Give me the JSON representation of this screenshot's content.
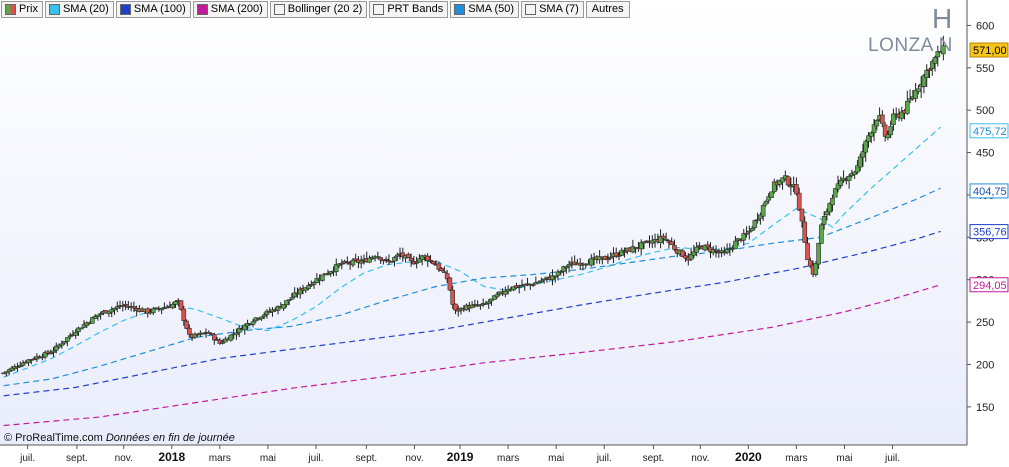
{
  "legend": [
    {
      "label": "Prix",
      "color": "#5aa64a",
      "swatch": "candle"
    },
    {
      "label": "SMA (20)",
      "color": "#39c0ef"
    },
    {
      "label": "SMA (100)",
      "color": "#1f3fc9"
    },
    {
      "label": "SMA (200)",
      "color": "#c21a9a"
    },
    {
      "label": "Bollinger (20 2)",
      "color": "#f4f4f4"
    },
    {
      "label": "PRT Bands",
      "color": "#f4f4f4"
    },
    {
      "label": "SMA (50)",
      "color": "#1e8fdc"
    },
    {
      "label": "SMA (7)",
      "color": "#f4f4f4"
    }
  ],
  "legend_more": "Autres",
  "ticker": {
    "letter": "H",
    "name": "LONZA N"
  },
  "footer": {
    "source": "© ProRealTime.com",
    "note": "Données en fin de journée"
  },
  "chart_data": {
    "type": "candlestick",
    "title": "LONZA N",
    "ylim": [
      105,
      630
    ],
    "yticks": [
      150,
      200,
      250,
      300,
      350,
      400,
      450,
      500,
      550,
      600
    ],
    "x_labels": [
      {
        "t": 2.0,
        "label": "juil.",
        "bold": false
      },
      {
        "t": 6.1,
        "label": "sept.",
        "bold": false
      },
      {
        "t": 10.0,
        "label": "nov.",
        "bold": false
      },
      {
        "t": 14.0,
        "label": "2018",
        "bold": true
      },
      {
        "t": 18.0,
        "label": "mars",
        "bold": false
      },
      {
        "t": 22.0,
        "label": "mai",
        "bold": false
      },
      {
        "t": 26.0,
        "label": "juil.",
        "bold": false
      },
      {
        "t": 30.2,
        "label": "sept.",
        "bold": false
      },
      {
        "t": 34.2,
        "label": "nov.",
        "bold": false
      },
      {
        "t": 38.0,
        "label": "2019",
        "bold": true
      },
      {
        "t": 42.0,
        "label": "mars",
        "bold": false
      },
      {
        "t": 46.0,
        "label": "mai",
        "bold": false
      },
      {
        "t": 50.0,
        "label": "juil.",
        "bold": false
      },
      {
        "t": 54.1,
        "label": "sept.",
        "bold": false
      },
      {
        "t": 58.0,
        "label": "nov.",
        "bold": false
      },
      {
        "t": 62.0,
        "label": "2020",
        "bold": true
      },
      {
        "t": 66.0,
        "label": "mars",
        "bold": false
      },
      {
        "t": 70.0,
        "label": "mai",
        "bold": false
      },
      {
        "t": 74.0,
        "label": "juil.",
        "bold": false
      }
    ],
    "price_points": [
      [
        0,
        190
      ],
      [
        2,
        205
      ],
      [
        4,
        215
      ],
      [
        6,
        240
      ],
      [
        8,
        260
      ],
      [
        10,
        270
      ],
      [
        12,
        262
      ],
      [
        14,
        270
      ],
      [
        14.5,
        275
      ],
      [
        15.5,
        232
      ],
      [
        17,
        238
      ],
      [
        18,
        225
      ],
      [
        19,
        235
      ],
      [
        21,
        255
      ],
      [
        23,
        268
      ],
      [
        24.5,
        285
      ],
      [
        26,
        300
      ],
      [
        28,
        318
      ],
      [
        30,
        322
      ],
      [
        31,
        330
      ],
      [
        32,
        320
      ],
      [
        33,
        330
      ],
      [
        34,
        320
      ],
      [
        35,
        328
      ],
      [
        36,
        318
      ],
      [
        37,
        300
      ],
      [
        37.5,
        262
      ],
      [
        38.5,
        268
      ],
      [
        40,
        270
      ],
      [
        42,
        290
      ],
      [
        44,
        295
      ],
      [
        46,
        305
      ],
      [
        47,
        318
      ],
      [
        48,
        320
      ],
      [
        50,
        325
      ],
      [
        52,
        335
      ],
      [
        54,
        345
      ],
      [
        55,
        350
      ],
      [
        56,
        335
      ],
      [
        57,
        325
      ],
      [
        58,
        340
      ],
      [
        60,
        330
      ],
      [
        61,
        345
      ],
      [
        62,
        355
      ],
      [
        63,
        380
      ],
      [
        64,
        410
      ],
      [
        65,
        420
      ],
      [
        66,
        405
      ],
      [
        67,
        320
      ],
      [
        67.5,
        305
      ],
      [
        68,
        360
      ],
      [
        69,
        400
      ],
      [
        70,
        420
      ],
      [
        71,
        430
      ],
      [
        72,
        470
      ],
      [
        72.8,
        495
      ],
      [
        73.5,
        465
      ],
      [
        74,
        490
      ],
      [
        75,
        500
      ],
      [
        76,
        525
      ],
      [
        77,
        550
      ],
      [
        78,
        570
      ],
      [
        78.4,
        571
      ]
    ],
    "series": [
      {
        "name": "SMA (20)",
        "color": "#39c0ef",
        "points": [
          [
            0,
            185
          ],
          [
            2,
            196
          ],
          [
            4,
            207
          ],
          [
            6,
            222
          ],
          [
            8,
            238
          ],
          [
            10,
            252
          ],
          [
            12,
            262
          ],
          [
            14,
            270
          ],
          [
            16,
            265
          ],
          [
            18,
            255
          ],
          [
            20,
            244
          ],
          [
            22,
            240
          ],
          [
            24,
            252
          ],
          [
            26,
            268
          ],
          [
            28,
            290
          ],
          [
            30,
            308
          ],
          [
            32,
            318
          ],
          [
            34,
            321
          ],
          [
            36,
            322
          ],
          [
            38,
            310
          ],
          [
            40,
            292
          ],
          [
            42,
            287
          ],
          [
            44,
            294
          ],
          [
            46,
            300
          ],
          [
            48,
            306
          ],
          [
            50,
            314
          ],
          [
            52,
            324
          ],
          [
            54,
            332
          ],
          [
            56,
            338
          ],
          [
            58,
            336
          ],
          [
            60,
            336
          ],
          [
            62,
            343
          ],
          [
            64,
            364
          ],
          [
            66,
            384
          ],
          [
            68,
            372
          ],
          [
            69,
            362
          ],
          [
            70,
            378
          ],
          [
            72,
            405
          ],
          [
            74,
            430
          ],
          [
            76,
            455
          ],
          [
            78,
            480
          ]
        ]
      },
      {
        "name": "SMA (50)",
        "color": "#1e8fdc",
        "points": [
          [
            0,
            175
          ],
          [
            4,
            183
          ],
          [
            8,
            198
          ],
          [
            12,
            215
          ],
          [
            16,
            232
          ],
          [
            20,
            240
          ],
          [
            24,
            245
          ],
          [
            28,
            258
          ],
          [
            32,
            276
          ],
          [
            36,
            292
          ],
          [
            40,
            302
          ],
          [
            44,
            306
          ],
          [
            48,
            312
          ],
          [
            52,
            320
          ],
          [
            56,
            328
          ],
          [
            60,
            334
          ],
          [
            64,
            343
          ],
          [
            68,
            350
          ],
          [
            72,
            372
          ],
          [
            76,
            395
          ],
          [
            78,
            408
          ]
        ]
      },
      {
        "name": "SMA (100)",
        "color": "#1f3fc9",
        "points": [
          [
            0,
            163
          ],
          [
            6,
            173
          ],
          [
            12,
            190
          ],
          [
            18,
            207
          ],
          [
            24,
            218
          ],
          [
            30,
            229
          ],
          [
            36,
            240
          ],
          [
            42,
            255
          ],
          [
            48,
            270
          ],
          [
            54,
            284
          ],
          [
            60,
            297
          ],
          [
            66,
            313
          ],
          [
            72,
            333
          ],
          [
            76,
            348
          ],
          [
            78,
            357
          ]
        ]
      },
      {
        "name": "SMA (200)",
        "color": "#c21a9a",
        "points": [
          [
            0,
            128
          ],
          [
            8,
            138
          ],
          [
            16,
            155
          ],
          [
            24,
            172
          ],
          [
            32,
            186
          ],
          [
            40,
            202
          ],
          [
            48,
            214
          ],
          [
            56,
            227
          ],
          [
            64,
            244
          ],
          [
            70,
            262
          ],
          [
            74,
            277
          ],
          [
            78,
            294
          ]
        ]
      }
    ],
    "last_values": [
      {
        "label": "571,00",
        "value": 571.0,
        "bg": "#f5c518",
        "border": "#b8860b",
        "color": "#000000"
      },
      {
        "label": "475,72",
        "value": 475.72,
        "bg": "#ffffff",
        "border": "#39c0ef",
        "color": "#1e8fdc"
      },
      {
        "label": "404,75",
        "value": 404.75,
        "bg": "#ffffff",
        "border": "#1e8fdc",
        "color": "#1a4fb8"
      },
      {
        "label": "356,76",
        "value": 356.76,
        "bg": "#ffffff",
        "border": "#1f3fc9",
        "color": "#1f3fc9"
      },
      {
        "label": "294,05",
        "value": 294.05,
        "bg": "#ffffff",
        "border": "#c21a9a",
        "color": "#c21a9a"
      }
    ],
    "colors": {
      "up": "#5aa64a",
      "down": "#d9534f",
      "wick": "#222222"
    }
  }
}
